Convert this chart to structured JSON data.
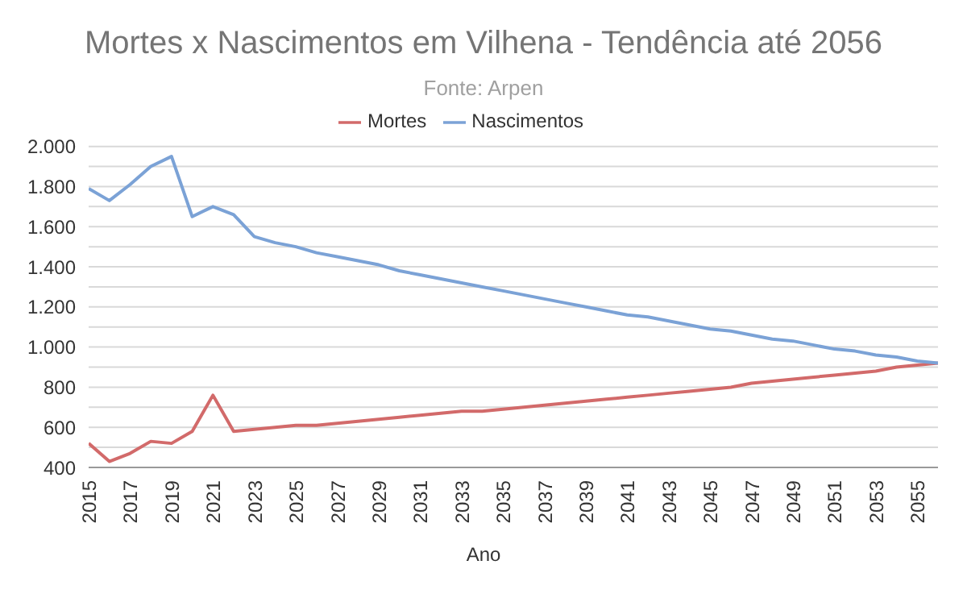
{
  "chart_data": {
    "type": "line",
    "title": "Mortes x Nascimentos em Vilhena - Tendência até 2056",
    "subtitle": "Fonte: Arpen",
    "xlabel": "Ano",
    "x": [
      2015,
      2016,
      2017,
      2018,
      2019,
      2020,
      2021,
      2022,
      2023,
      2024,
      2025,
      2026,
      2027,
      2028,
      2029,
      2030,
      2031,
      2032,
      2033,
      2034,
      2035,
      2036,
      2037,
      2038,
      2039,
      2040,
      2041,
      2042,
      2043,
      2044,
      2045,
      2046,
      2047,
      2048,
      2049,
      2050,
      2051,
      2052,
      2053,
      2054,
      2055,
      2056
    ],
    "series": [
      {
        "name": "Mortes",
        "color": "#d26a6a",
        "values": [
          520,
          430,
          470,
          530,
          520,
          580,
          760,
          580,
          590,
          600,
          610,
          610,
          620,
          630,
          640,
          650,
          660,
          670,
          680,
          680,
          690,
          700,
          710,
          720,
          730,
          740,
          750,
          760,
          770,
          780,
          790,
          800,
          820,
          830,
          840,
          850,
          860,
          870,
          880,
          900,
          910,
          920
        ]
      },
      {
        "name": "Nascimentos",
        "color": "#7ba2d6",
        "values": [
          1790,
          1730,
          1810,
          1900,
          1950,
          1650,
          1700,
          1660,
          1550,
          1520,
          1500,
          1470,
          1450,
          1430,
          1410,
          1380,
          1360,
          1340,
          1320,
          1300,
          1280,
          1260,
          1240,
          1220,
          1200,
          1180,
          1160,
          1150,
          1130,
          1110,
          1090,
          1080,
          1060,
          1040,
          1030,
          1010,
          990,
          980,
          960,
          950,
          930,
          920
        ]
      }
    ],
    "xlim": [
      2015,
      2056
    ],
    "xticks": [
      2015,
      2017,
      2019,
      2021,
      2023,
      2025,
      2027,
      2029,
      2031,
      2033,
      2035,
      2037,
      2039,
      2041,
      2043,
      2045,
      2047,
      2049,
      2051,
      2053,
      2055
    ],
    "ylim": [
      400,
      2000
    ],
    "yticks": [
      400,
      {
        "value": 500,
        "label": null
      },
      600,
      {
        "value": 700,
        "label": null
      },
      800,
      {
        "value": 900,
        "label": null
      },
      {
        "value": 1000,
        "label": "1.000"
      },
      {
        "value": 1100,
        "label": null
      },
      {
        "value": 1200,
        "label": "1.200"
      },
      {
        "value": 1300,
        "label": null
      },
      {
        "value": 1400,
        "label": "1.400"
      },
      {
        "value": 1500,
        "label": null
      },
      {
        "value": 1600,
        "label": "1.600"
      },
      {
        "value": 1700,
        "label": null
      },
      {
        "value": 1800,
        "label": "1.800"
      },
      {
        "value": 1900,
        "label": null
      },
      {
        "value": 2000,
        "label": "2.000"
      }
    ],
    "grid": "y",
    "legend": "top",
    "marker": "none",
    "line_style": "solid"
  }
}
